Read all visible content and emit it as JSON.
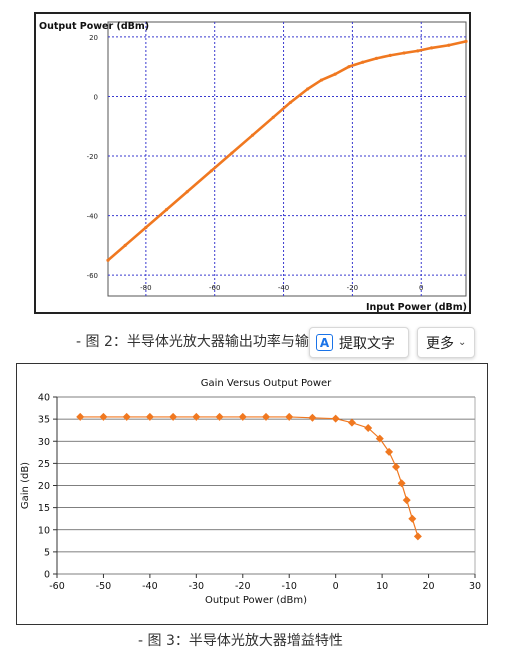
{
  "figure1": {
    "caption": "- 图 2：半导体光放大器输出功率与输入功率关系",
    "chart_data": {
      "type": "line",
      "title": "Output Power (dBm)",
      "xlabel": "Input Power (dBm)",
      "ylabel": "",
      "xlim": [
        -91,
        13
      ],
      "ylim": [
        -67,
        25
      ],
      "xticks": [
        -80,
        -60,
        -40,
        -20,
        0
      ],
      "yticks": [
        -60,
        -40,
        -20,
        0,
        20
      ],
      "grid": true,
      "line_color": "#f07820",
      "series": [
        {
          "name": "",
          "x": [
            -91,
            -86,
            -80,
            -74,
            -68,
            -61,
            -55,
            -49,
            -43,
            -38,
            -33,
            -29,
            -25,
            -21,
            -17,
            -13,
            -9,
            -5,
            -1,
            3,
            8,
            13
          ],
          "y": [
            -55,
            -50,
            -44,
            -38,
            -32,
            -25,
            -19,
            -13,
            -7,
            -2,
            2.5,
            5.5,
            7.5,
            10,
            11.5,
            12.8,
            13.8,
            14.6,
            15.3,
            16.3,
            17.2,
            18.5
          ]
        }
      ]
    }
  },
  "figure2": {
    "caption": "- 图 3：半导体光放大器增益特性",
    "chart_data": {
      "type": "line",
      "title": "Gain Versus Output Power",
      "xlabel": "Output Power (dBm)",
      "ylabel": "Gain (dB)",
      "xlim": [
        -60,
        30
      ],
      "ylim": [
        0,
        40
      ],
      "xticks": [
        -60,
        -50,
        -40,
        -30,
        -20,
        -10,
        0,
        10,
        20,
        30
      ],
      "yticks": [
        0,
        5,
        10,
        15,
        20,
        25,
        30,
        35,
        40
      ],
      "grid": "horizontal",
      "line_color": "#f07820",
      "series": [
        {
          "name": "",
          "x": [
            -55,
            -50,
            -45,
            -40,
            -35,
            -30,
            -25,
            -20,
            -15,
            -10,
            -5,
            0,
            3.5,
            7,
            9.5,
            11.5,
            13,
            14.2,
            15.3,
            16.5,
            17.7
          ],
          "y": [
            35.5,
            35.5,
            35.5,
            35.5,
            35.5,
            35.5,
            35.5,
            35.5,
            35.5,
            35.5,
            35.3,
            35.1,
            34.2,
            33,
            30.6,
            27.6,
            24.2,
            20.5,
            16.7,
            12.5,
            8.5
          ]
        }
      ]
    }
  },
  "popup": {
    "extract_label": "提取文字",
    "more_label": "更多",
    "a_glyph": "A",
    "chevron": "⌄"
  }
}
